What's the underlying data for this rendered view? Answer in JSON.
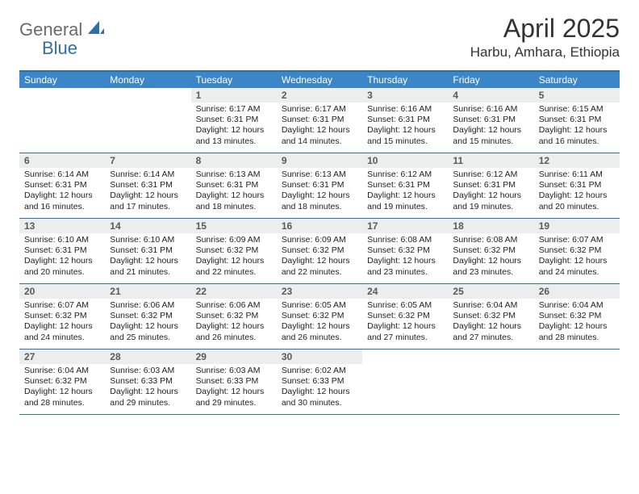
{
  "logo": {
    "general": "General",
    "blue": "Blue"
  },
  "title": "April 2025",
  "location": "Harbu, Amhara, Ethiopia",
  "weekdays": [
    "Sunday",
    "Monday",
    "Tuesday",
    "Wednesday",
    "Thursday",
    "Friday",
    "Saturday"
  ],
  "colors": {
    "header_bar": "#3a86c8",
    "border": "#2f6fa8",
    "daynum_bg": "#eceded",
    "text": "#222222",
    "logo_gray": "#6b6b6b",
    "logo_blue": "#2f6fa8"
  },
  "weeks": [
    [
      {
        "n": "",
        "sr": "",
        "ss": "",
        "dl": ""
      },
      {
        "n": "",
        "sr": "",
        "ss": "",
        "dl": ""
      },
      {
        "n": "1",
        "sr": "Sunrise: 6:17 AM",
        "ss": "Sunset: 6:31 PM",
        "dl": "Daylight: 12 hours and 13 minutes."
      },
      {
        "n": "2",
        "sr": "Sunrise: 6:17 AM",
        "ss": "Sunset: 6:31 PM",
        "dl": "Daylight: 12 hours and 14 minutes."
      },
      {
        "n": "3",
        "sr": "Sunrise: 6:16 AM",
        "ss": "Sunset: 6:31 PM",
        "dl": "Daylight: 12 hours and 15 minutes."
      },
      {
        "n": "4",
        "sr": "Sunrise: 6:16 AM",
        "ss": "Sunset: 6:31 PM",
        "dl": "Daylight: 12 hours and 15 minutes."
      },
      {
        "n": "5",
        "sr": "Sunrise: 6:15 AM",
        "ss": "Sunset: 6:31 PM",
        "dl": "Daylight: 12 hours and 16 minutes."
      }
    ],
    [
      {
        "n": "6",
        "sr": "Sunrise: 6:14 AM",
        "ss": "Sunset: 6:31 PM",
        "dl": "Daylight: 12 hours and 16 minutes."
      },
      {
        "n": "7",
        "sr": "Sunrise: 6:14 AM",
        "ss": "Sunset: 6:31 PM",
        "dl": "Daylight: 12 hours and 17 minutes."
      },
      {
        "n": "8",
        "sr": "Sunrise: 6:13 AM",
        "ss": "Sunset: 6:31 PM",
        "dl": "Daylight: 12 hours and 18 minutes."
      },
      {
        "n": "9",
        "sr": "Sunrise: 6:13 AM",
        "ss": "Sunset: 6:31 PM",
        "dl": "Daylight: 12 hours and 18 minutes."
      },
      {
        "n": "10",
        "sr": "Sunrise: 6:12 AM",
        "ss": "Sunset: 6:31 PM",
        "dl": "Daylight: 12 hours and 19 minutes."
      },
      {
        "n": "11",
        "sr": "Sunrise: 6:12 AM",
        "ss": "Sunset: 6:31 PM",
        "dl": "Daylight: 12 hours and 19 minutes."
      },
      {
        "n": "12",
        "sr": "Sunrise: 6:11 AM",
        "ss": "Sunset: 6:31 PM",
        "dl": "Daylight: 12 hours and 20 minutes."
      }
    ],
    [
      {
        "n": "13",
        "sr": "Sunrise: 6:10 AM",
        "ss": "Sunset: 6:31 PM",
        "dl": "Daylight: 12 hours and 20 minutes."
      },
      {
        "n": "14",
        "sr": "Sunrise: 6:10 AM",
        "ss": "Sunset: 6:31 PM",
        "dl": "Daylight: 12 hours and 21 minutes."
      },
      {
        "n": "15",
        "sr": "Sunrise: 6:09 AM",
        "ss": "Sunset: 6:32 PM",
        "dl": "Daylight: 12 hours and 22 minutes."
      },
      {
        "n": "16",
        "sr": "Sunrise: 6:09 AM",
        "ss": "Sunset: 6:32 PM",
        "dl": "Daylight: 12 hours and 22 minutes."
      },
      {
        "n": "17",
        "sr": "Sunrise: 6:08 AM",
        "ss": "Sunset: 6:32 PM",
        "dl": "Daylight: 12 hours and 23 minutes."
      },
      {
        "n": "18",
        "sr": "Sunrise: 6:08 AM",
        "ss": "Sunset: 6:32 PM",
        "dl": "Daylight: 12 hours and 23 minutes."
      },
      {
        "n": "19",
        "sr": "Sunrise: 6:07 AM",
        "ss": "Sunset: 6:32 PM",
        "dl": "Daylight: 12 hours and 24 minutes."
      }
    ],
    [
      {
        "n": "20",
        "sr": "Sunrise: 6:07 AM",
        "ss": "Sunset: 6:32 PM",
        "dl": "Daylight: 12 hours and 24 minutes."
      },
      {
        "n": "21",
        "sr": "Sunrise: 6:06 AM",
        "ss": "Sunset: 6:32 PM",
        "dl": "Daylight: 12 hours and 25 minutes."
      },
      {
        "n": "22",
        "sr": "Sunrise: 6:06 AM",
        "ss": "Sunset: 6:32 PM",
        "dl": "Daylight: 12 hours and 26 minutes."
      },
      {
        "n": "23",
        "sr": "Sunrise: 6:05 AM",
        "ss": "Sunset: 6:32 PM",
        "dl": "Daylight: 12 hours and 26 minutes."
      },
      {
        "n": "24",
        "sr": "Sunrise: 6:05 AM",
        "ss": "Sunset: 6:32 PM",
        "dl": "Daylight: 12 hours and 27 minutes."
      },
      {
        "n": "25",
        "sr": "Sunrise: 6:04 AM",
        "ss": "Sunset: 6:32 PM",
        "dl": "Daylight: 12 hours and 27 minutes."
      },
      {
        "n": "26",
        "sr": "Sunrise: 6:04 AM",
        "ss": "Sunset: 6:32 PM",
        "dl": "Daylight: 12 hours and 28 minutes."
      }
    ],
    [
      {
        "n": "27",
        "sr": "Sunrise: 6:04 AM",
        "ss": "Sunset: 6:32 PM",
        "dl": "Daylight: 12 hours and 28 minutes."
      },
      {
        "n": "28",
        "sr": "Sunrise: 6:03 AM",
        "ss": "Sunset: 6:33 PM",
        "dl": "Daylight: 12 hours and 29 minutes."
      },
      {
        "n": "29",
        "sr": "Sunrise: 6:03 AM",
        "ss": "Sunset: 6:33 PM",
        "dl": "Daylight: 12 hours and 29 minutes."
      },
      {
        "n": "30",
        "sr": "Sunrise: 6:02 AM",
        "ss": "Sunset: 6:33 PM",
        "dl": "Daylight: 12 hours and 30 minutes."
      },
      {
        "n": "",
        "sr": "",
        "ss": "",
        "dl": ""
      },
      {
        "n": "",
        "sr": "",
        "ss": "",
        "dl": ""
      },
      {
        "n": "",
        "sr": "",
        "ss": "",
        "dl": ""
      }
    ]
  ]
}
